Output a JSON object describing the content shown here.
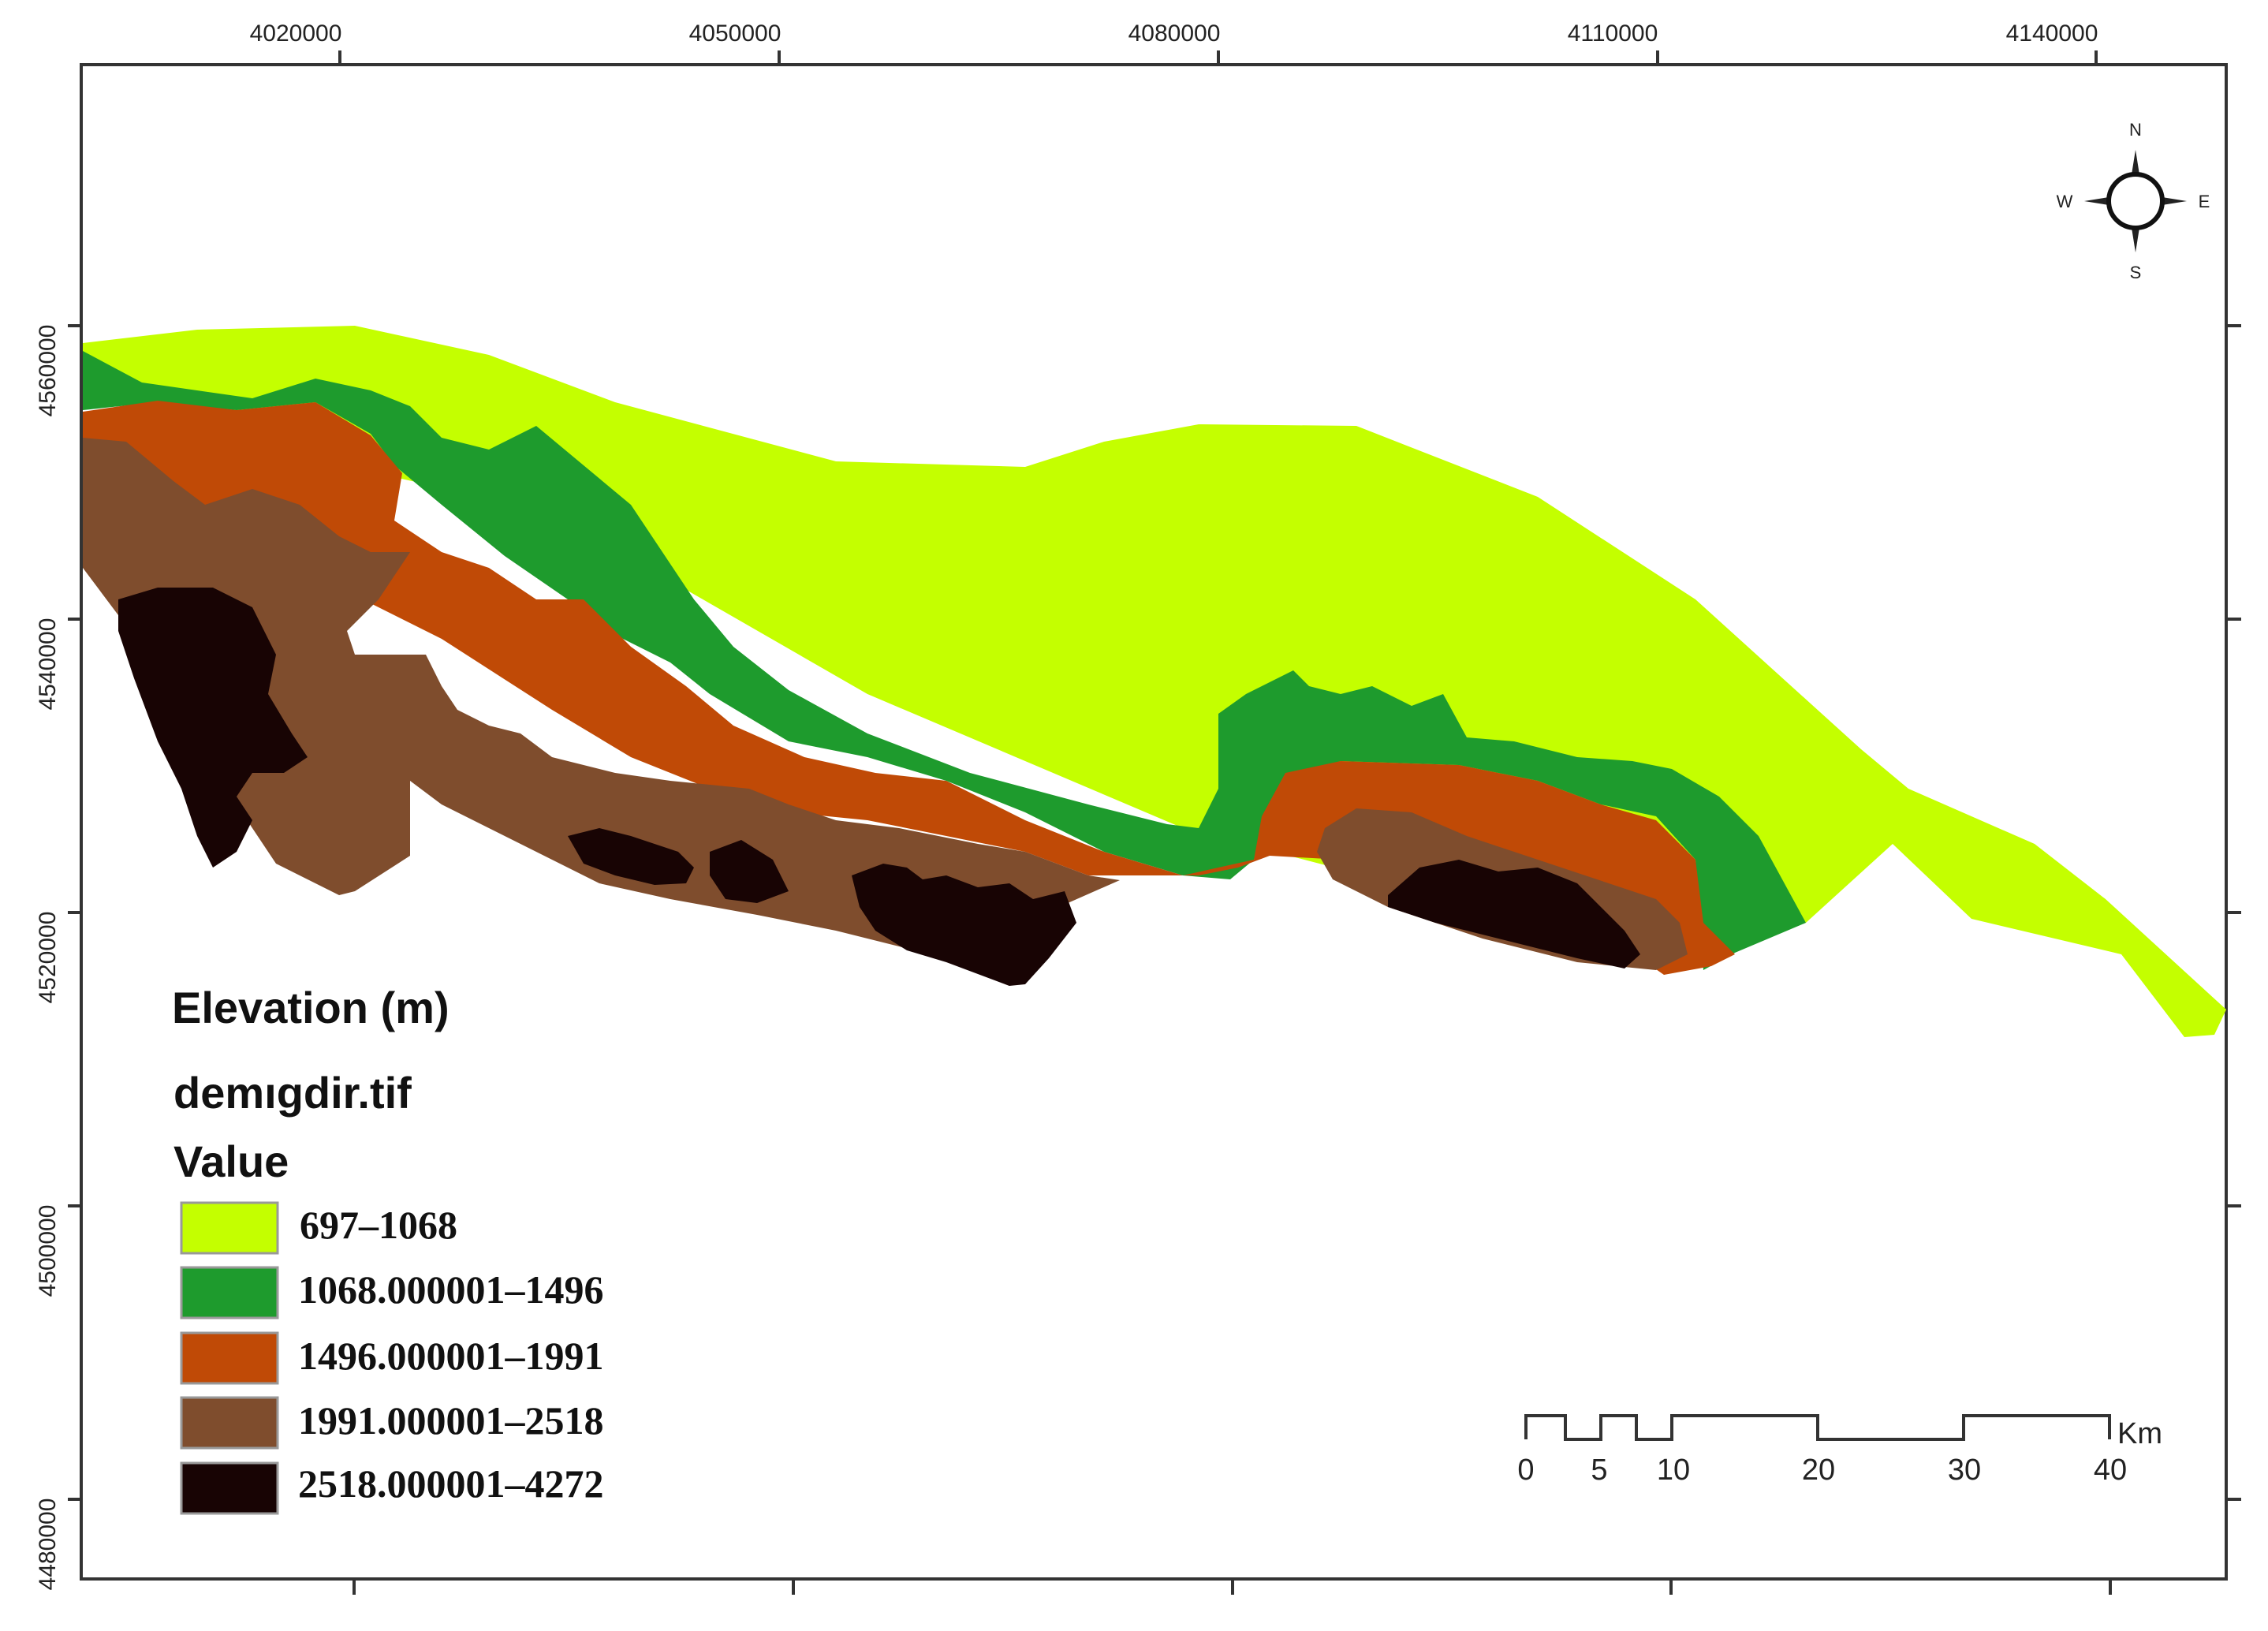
{
  "map": {
    "x_ticks": [
      "4020000",
      "4050000",
      "4080000",
      "4110000",
      "4140000"
    ],
    "y_ticks": [
      "4560000",
      "4540000",
      "4520000",
      "4500000",
      "4480000"
    ]
  },
  "legend": {
    "title": "Elevation (m)",
    "layer": "demıgdir.tif",
    "field": "Value",
    "classes": [
      {
        "label": "697–1068",
        "color": "#c4ff00"
      },
      {
        "label": "1068.000001–1496",
        "color": "#1e9b2d"
      },
      {
        "label": "1496.000001–1991",
        "color": "#c04a06"
      },
      {
        "label": "1991.000001–2518",
        "color": "#7f4d2d"
      },
      {
        "label": "2518.000001–4272",
        "color": "#180404"
      }
    ]
  },
  "scale_bar": {
    "labels": [
      "0",
      "5",
      "10",
      "20",
      "30",
      "40"
    ],
    "unit": "Km"
  },
  "compass": {
    "n": "N",
    "s": "S",
    "e": "E",
    "w": "W"
  }
}
